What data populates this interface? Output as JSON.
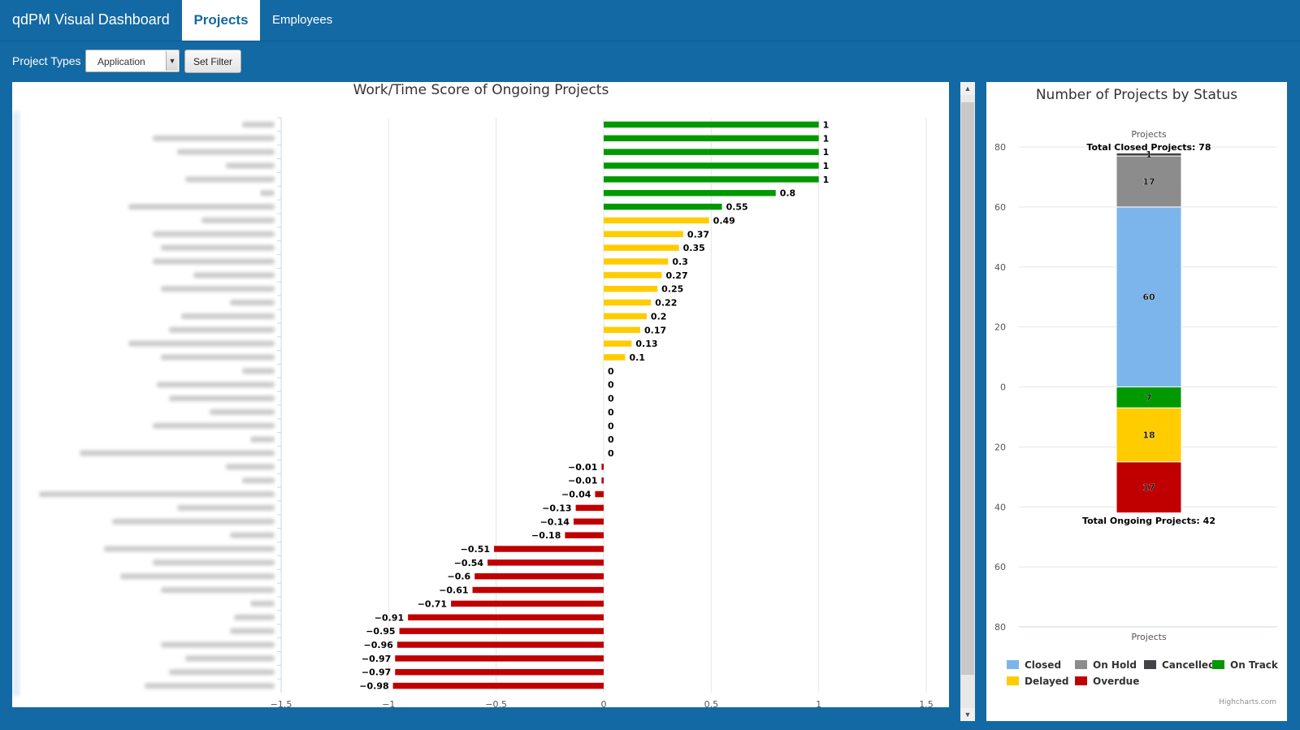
{
  "nav": {
    "brand": "qdPM Visual Dashboard",
    "tab_projects": "Projects",
    "tab_employees": "Employees"
  },
  "filter": {
    "label": "Project Types",
    "selected": "Application",
    "button": "Set Filter"
  },
  "colors": {
    "green": "#009900",
    "yellow": "#ffcc00",
    "red": "#c00000",
    "closed": "#7cb5ec",
    "on_hold": "#8c8c8c",
    "cancelled": "#434348",
    "on_track": "#009900",
    "delayed": "#ffcc00",
    "overdue": "#c00000"
  },
  "chart_data": [
    {
      "type": "bar",
      "title": "Work/Time Score of Ongoing Projects",
      "orientation": "horizontal",
      "category_labels_blurred": true,
      "values": [
        1,
        1,
        1,
        1,
        1,
        0.8,
        0.55,
        0.49,
        0.37,
        0.35,
        0.3,
        0.27,
        0.25,
        0.22,
        0.2,
        0.17,
        0.13,
        0.1,
        0,
        0,
        0,
        0,
        0,
        0,
        0,
        -0.01,
        -0.01,
        -0.04,
        -0.13,
        -0.14,
        -0.18,
        -0.51,
        -0.54,
        -0.6,
        -0.61,
        -0.71,
        -0.91,
        -0.95,
        -0.96,
        -0.97,
        -0.97,
        -0.98
      ],
      "xlim": [
        -1.5,
        1.5
      ],
      "xticks": [
        "−1.5",
        "−1",
        "−0.5",
        "0",
        "0.5",
        "1",
        "1.5"
      ],
      "grid": true
    },
    {
      "type": "bar",
      "title": "Number of Projects by Status",
      "stacked": true,
      "category": "Projects",
      "xlabel": "Projects",
      "ylim": [
        -80,
        80
      ],
      "yticks": [
        "80",
        "60",
        "40",
        "20",
        "0",
        "20",
        "40",
        "60",
        "80"
      ],
      "series": [
        {
          "name": "Closed",
          "value": 60
        },
        {
          "name": "On Hold",
          "value": 17
        },
        {
          "name": "Cancelled",
          "value": 1
        },
        {
          "name": "On Track",
          "value": -7
        },
        {
          "name": "Delayed",
          "value": -18
        },
        {
          "name": "Overdue",
          "value": -17
        }
      ],
      "labels": {
        "total_closed": "Total Closed Projects: 78",
        "total_ongoing": "Total Ongoing Projects: 42",
        "cancelled": "1",
        "on_hold": "17",
        "closed": "60",
        "on_track": "7",
        "delayed": "18",
        "overdue": "17"
      },
      "legend": [
        "Closed",
        "On Hold",
        "Cancelled",
        "On Track",
        "Delayed",
        "Overdue"
      ],
      "legend_position": "bottom",
      "credit": "Highcharts.com"
    }
  ]
}
